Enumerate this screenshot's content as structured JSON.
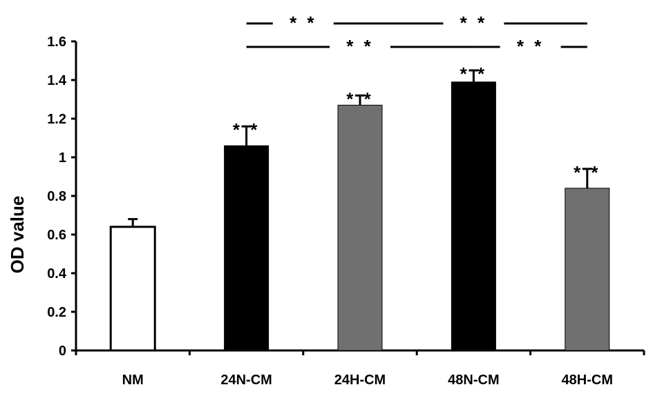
{
  "chart_data": {
    "type": "bar",
    "title": "",
    "xlabel": "",
    "ylabel": "OD value",
    "ylim": [
      0,
      1.6
    ],
    "yticks": [
      "0",
      "0.2",
      "0.4",
      "0.6",
      "0.8",
      "1",
      "1.2",
      "1.4",
      "1.6"
    ],
    "ytick_values": [
      0,
      0.2,
      0.4,
      0.6,
      0.8,
      1.0,
      1.2,
      1.4,
      1.6
    ],
    "grid": false,
    "categories": [
      "NM",
      "24N-CM",
      "24H-CM",
      "48N-CM",
      "48H-CM"
    ],
    "values": [
      0.64,
      1.06,
      1.27,
      1.39,
      0.84
    ],
    "errors": [
      0.04,
      0.1,
      0.05,
      0.06,
      0.1
    ],
    "bar_colors": [
      "#ffffff",
      "#000000",
      "#707070",
      "#000000",
      "#707070"
    ],
    "bar_annotations": [
      "",
      "* *",
      "* *",
      "* *",
      "* *"
    ],
    "comparisons": [
      {
        "from": "24N-CM",
        "to": "24H-CM",
        "label": "* *",
        "level": 2
      },
      {
        "from": "24H-CM",
        "to": "48H-CM",
        "label": "* *",
        "level": 2
      },
      {
        "from": "24N-CM",
        "to": "48N-CM",
        "label": "* *",
        "level": 1
      },
      {
        "from": "48N-CM",
        "to": "48H-CM",
        "label": "* *",
        "level": 1
      }
    ]
  }
}
